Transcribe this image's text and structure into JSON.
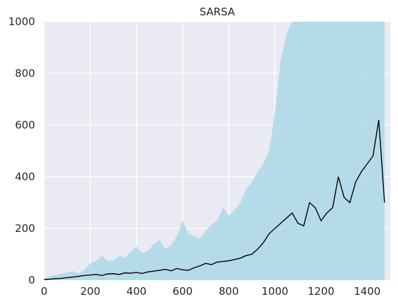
{
  "chart_data": {
    "type": "line",
    "title": "SARSA",
    "xlabel": "",
    "ylabel": "",
    "xlim": [
      0,
      1500
    ],
    "ylim": [
      0,
      1000
    ],
    "x_ticks": [
      0,
      200,
      400,
      600,
      800,
      1000,
      1200,
      1400
    ],
    "y_ticks": [
      0,
      200,
      400,
      600,
      800,
      1000
    ],
    "grid": true,
    "legend": "none",
    "x_step": 25,
    "series": [
      {
        "role": "band",
        "color": "#add8e6",
        "values": [
          5,
          15,
          20,
          25,
          30,
          35,
          25,
          40,
          65,
          75,
          95,
          75,
          75,
          95,
          85,
          110,
          130,
          105,
          115,
          140,
          155,
          120,
          135,
          170,
          230,
          180,
          170,
          160,
          190,
          215,
          230,
          280,
          250,
          270,
          300,
          350,
          380,
          420,
          450,
          500,
          650,
          850,
          950,
          1000,
          1000,
          1000,
          1000,
          1000,
          1000,
          1000,
          1000,
          1000,
          1000,
          1000,
          1000,
          1000,
          1000,
          1000,
          1000,
          1000
        ]
      },
      {
        "role": "mean",
        "color": "#000000",
        "values": [
          2,
          4,
          6,
          7,
          10,
          12,
          15,
          18,
          20,
          22,
          18,
          24,
          25,
          22,
          28,
          27,
          30,
          26,
          32,
          35,
          38,
          42,
          36,
          45,
          40,
          38,
          48,
          55,
          65,
          60,
          70,
          72,
          75,
          80,
          85,
          95,
          100,
          120,
          145,
          180,
          200,
          220,
          240,
          260,
          220,
          210,
          300,
          280,
          230,
          260,
          280,
          400,
          320,
          300,
          380,
          420,
          450,
          480,
          620,
          300
        ]
      }
    ]
  }
}
